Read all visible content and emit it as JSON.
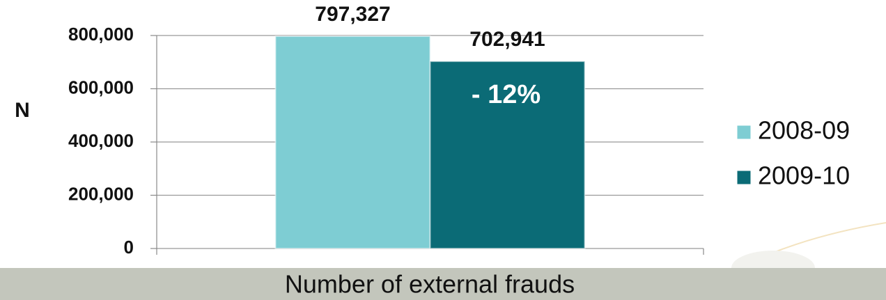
{
  "chart_data": {
    "type": "bar",
    "x_label": "Number of external frauds",
    "y_label": "N",
    "categories": [
      null
    ],
    "series": [
      {
        "name": "2008-09",
        "color": "#7ecdd3",
        "values": [
          797327
        ],
        "value_labels": [
          "797,327"
        ]
      },
      {
        "name": "2009-10",
        "color": "#0b6b76",
        "values": [
          702941
        ],
        "value_labels": [
          "702,941"
        ]
      }
    ],
    "annotation": "- 12%",
    "ylim": [
      0,
      800000
    ],
    "yticks": [
      0,
      {
        "value": 200000,
        "label": "200,000"
      },
      {
        "value": 400000,
        "label": "400,000"
      },
      {
        "value": 600000,
        "label": "600,000"
      },
      {
        "value": 800000,
        "label": "800,000"
      }
    ],
    "grid": true,
    "legend": "right"
  }
}
